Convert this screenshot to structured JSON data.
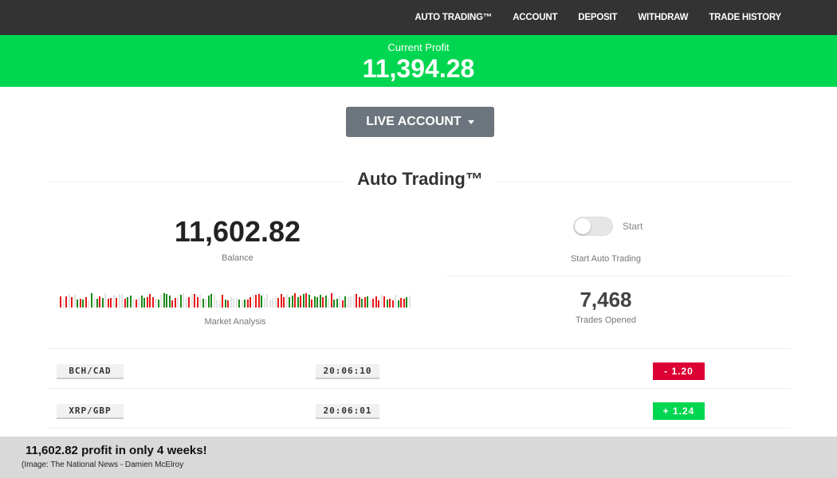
{
  "nav": {
    "items": [
      "AUTO TRADING™",
      "ACCOUNT",
      "DEPOSIT",
      "WITHDRAW",
      "TRADE HISTORY"
    ]
  },
  "profit": {
    "label": "Current Profit",
    "value": "11,394.28"
  },
  "account_button": "LIVE ACCOUNT",
  "title": "Auto Trading™",
  "balance": {
    "value": "11,602.82",
    "label": "Balance"
  },
  "auto": {
    "toggle_label": "Start",
    "label": "Start Auto Trading",
    "enabled": false
  },
  "market": {
    "label": "Market Analysis"
  },
  "trades": {
    "value": "7,468",
    "label": "Trades Opened"
  },
  "rows": [
    {
      "pair": "BCH/CAD",
      "time": "20:06:10",
      "change": "-  1.20",
      "direction": "down"
    },
    {
      "pair": "XRP/GBP",
      "time": "20:06:01",
      "change": "+  1.24",
      "direction": "up"
    }
  ],
  "colors": {
    "green": "#00d64f",
    "red": "#dc0034",
    "bar_green": "#1a8a1a",
    "bar_red": "#e81818",
    "bar_gray": "#e2e2e2"
  },
  "caption": {
    "headline": "11,602.82 profit in only 4 weeks!",
    "source": "(Image:  The National News - Damien McElroy"
  }
}
